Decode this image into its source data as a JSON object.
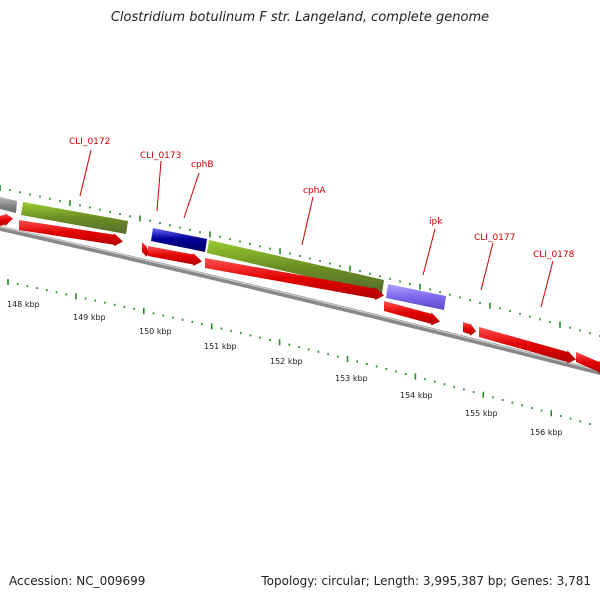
{
  "title": "Clostridium botulinum F str. Langeland, complete genome",
  "accession": "Accession: NC_009699",
  "summary": "Topology: circular; Length: 3,995,387 bp; Genes: 3,781",
  "gene_labels": [
    "CLI_0172",
    "CLI_0173",
    "cphB",
    "cphA",
    "ipk",
    "CLI_0177",
    "CLI_0178"
  ],
  "kbp_labels": [
    "148 kbp",
    "149 kbp",
    "150 kbp",
    "151 kbp",
    "152 kbp",
    "153 kbp",
    "154 kbp",
    "155 kbp",
    "156 kbp"
  ],
  "colors": {
    "cds_forward": "#e00000",
    "label": "#cc0000",
    "gene_olive": "#6b8e23",
    "gene_navy": "#000080",
    "gene_slate": "#7b68ee",
    "gene_gray": "#888888",
    "backbone": "#888888",
    "tick": "#228b22"
  }
}
